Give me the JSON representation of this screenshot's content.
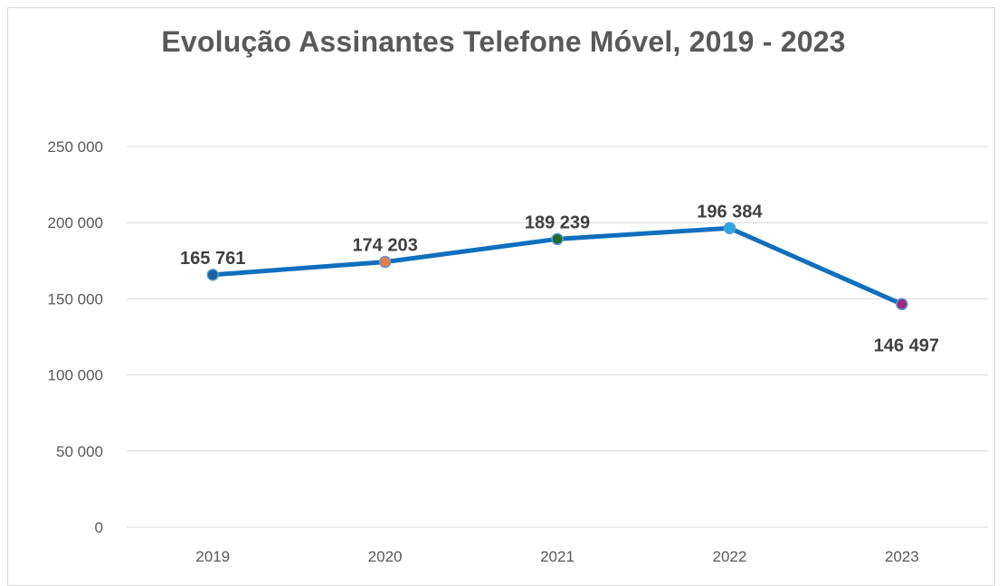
{
  "chart_data": {
    "type": "line",
    "title": "Evolução Assinantes Telefone Móvel, 2019 - 2023",
    "categories": [
      "2019",
      "2020",
      "2021",
      "2022",
      "2023"
    ],
    "series": [
      {
        "values": [
          165761,
          174203,
          189239,
          196384,
          146497
        ],
        "data_labels": [
          "165 761",
          "174 203",
          "189 239",
          "196 384",
          "146 497"
        ],
        "color": "#0f6fbd",
        "marker_colors": [
          "#1d5fa0",
          "#e87d3e",
          "#1f6b2e",
          "#2aa7e0",
          "#9c2a7f"
        ]
      }
    ],
    "y_ticks": [
      0,
      50000,
      100000,
      150000,
      200000,
      250000
    ],
    "y_tick_labels": [
      "0",
      "50 000",
      "100 000",
      "150 000",
      "200 000",
      "250 000"
    ],
    "ylim": [
      0,
      250000
    ],
    "grid": true,
    "legend": "none",
    "xlabel": "",
    "ylabel": ""
  }
}
